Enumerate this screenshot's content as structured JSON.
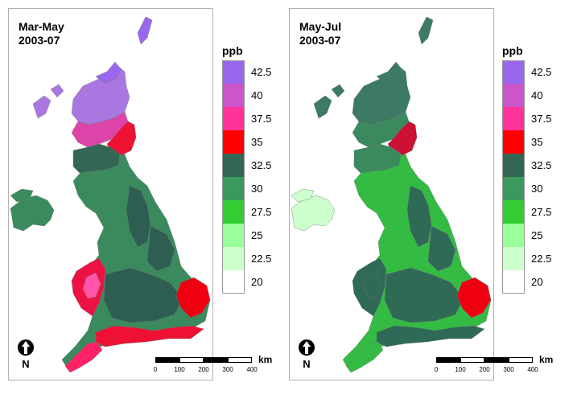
{
  "maps": [
    {
      "id": "left",
      "title_line1": "Mar-May",
      "title_line2": "2003-07",
      "colors": {
        "far_north": "#9966ee",
        "north": "#aa77e0",
        "highlands": "#dd44aa",
        "scot_band": "#ee1133",
        "central_belt": "#336655",
        "base": "#3a8a5e",
        "pennine": "#2e5e52",
        "irl": "#3a8a5e",
        "wales_hi": "#ee1144",
        "wales_in": "#ff55aa",
        "east": "#ee0011",
        "south": "#ee1133",
        "sw": "#ff2266"
      }
    },
    {
      "id": "right",
      "title_line1": "May-Jul",
      "title_line2": "2003-07",
      "colors": {
        "far_north": "#3c7a64",
        "north": "#3c7a64",
        "highlands": "#3a8a5e",
        "scot_band": "#cc1133",
        "central_belt": "#3a8a5e",
        "base": "#33bb44",
        "pennine": "#2e6a56",
        "irl": "#ccffcc",
        "wales_hi": "#2e6a56",
        "wales_in": "#2e6a56",
        "east": "#ee0011",
        "south": "#2e6a56",
        "sw": "#33bb44"
      }
    }
  ],
  "legend": {
    "unit": "ppb",
    "classes": [
      {
        "label": "42.5",
        "color": "#9966ee"
      },
      {
        "label": "40",
        "color": "#cc55cc"
      },
      {
        "label": "37.5",
        "color": "#ff3399"
      },
      {
        "label": "35",
        "color": "#ff0000"
      },
      {
        "label": "32.5",
        "color": "#336655"
      },
      {
        "label": "30",
        "color": "#3a9a5e"
      },
      {
        "label": "27.5",
        "color": "#33cc33"
      },
      {
        "label": "25",
        "color": "#99ff99"
      },
      {
        "label": "22.5",
        "color": "#ccffcc"
      },
      {
        "label": "20",
        "color": "#ffffff"
      }
    ]
  },
  "north_label": "N",
  "scale": {
    "unit": "km",
    "ticks": [
      "0",
      "100",
      "200",
      "300",
      "400"
    ]
  }
}
